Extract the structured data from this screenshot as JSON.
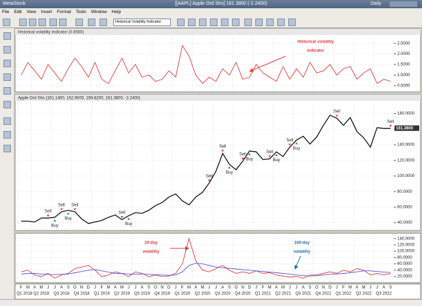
{
  "window": {
    "app": "MetaStock",
    "title": "[[AAPL] Apple Ord Shs]  161.3800 (-2.2400)",
    "period": "Daily"
  },
  "menu": [
    "File",
    "Edit",
    "View",
    "Insert",
    "Format",
    "Tools",
    "Window",
    "Help"
  ],
  "toolbar": {
    "indicator_select": "Historical Volatility Indicator"
  },
  "x_axis": {
    "months": [
      "F",
      "M",
      "A",
      "M",
      "J",
      "J",
      "A",
      "S",
      "O",
      "N",
      "D",
      "J",
      "F",
      "M",
      "A",
      "M",
      "J",
      "J",
      "A",
      "S",
      "O",
      "N",
      "D",
      "J",
      "F",
      "M",
      "A",
      "M",
      "J",
      "J",
      "A",
      "S",
      "O",
      "N",
      "D",
      "J",
      "F",
      "M",
      "A",
      "M",
      "J",
      "J",
      "A",
      "S",
      "O",
      "N",
      "D",
      "J",
      "F",
      "M",
      "A",
      "M",
      "J",
      "J",
      "A",
      "S"
    ],
    "quarters": [
      "Q1 2018",
      "Q2 2018",
      "Q3 2018",
      "Q4 2018",
      "Q1 2019",
      "Q2 2019",
      "Q3 2019",
      "Q4 2019",
      "Q1 2020",
      "Q2 2020",
      "Q3 2020",
      "Q4 2020",
      "Q1 2021",
      "Q2 2021",
      "Q3 2021",
      "Q4 2021",
      "Q1 2022",
      "Q2 2022",
      "Q3 2022"
    ]
  },
  "panels": [
    {
      "type": "line",
      "header": "Historical volatility Indicator (0.6580)",
      "ylim": [
        0.2,
        2.8
      ],
      "yticks": [
        {
          "value": 0.5,
          "label": "0.5000"
        },
        {
          "value": 1.0,
          "label": "1.0000"
        },
        {
          "value": 1.5,
          "label": "1.5000"
        },
        {
          "value": 2.0,
          "label": "2.0000"
        },
        {
          "value": 2.5,
          "label": "2.5000"
        }
      ],
      "series": [
        {
          "name": "Historical volatility indicator",
          "color": "#e03a3a",
          "values": [
            1.0,
            1.6,
            1.2,
            0.8,
            1.5,
            1.1,
            0.7,
            1.3,
            1.8,
            1.4,
            0.9,
            1.6,
            0.8,
            0.6,
            1.2,
            1.8,
            1.1,
            1.5,
            0.9,
            1.0,
            0.7,
            0.8,
            1.2,
            0.9,
            2.4,
            1.9,
            1.0,
            0.6,
            0.9,
            0.7,
            1.3,
            1.0,
            1.6,
            0.8,
            0.9,
            1.5,
            1.1,
            0.9,
            0.7,
            1.4,
            0.8,
            1.3,
            0.9,
            1.6,
            1.1,
            1.2,
            1.5,
            1.0,
            1.3,
            1.4,
            0.8,
            1.1,
            1.3,
            0.6,
            0.8,
            0.7
          ]
        }
      ],
      "annotations": [
        "Historical volatility",
        "indicator"
      ]
    },
    {
      "type": "line",
      "header": "Apple Ord Shs (161.1450, 162.9000, 159.8200, 161.3800, -2.2400)",
      "ylim": [
        30,
        192
      ],
      "yticks": [
        {
          "value": 40,
          "label": "40.0000"
        },
        {
          "value": 60,
          "label": "60.0000"
        },
        {
          "value": 80,
          "label": "80.0000"
        },
        {
          "value": 100,
          "label": "100.0000"
        },
        {
          "value": 120,
          "label": "120.0000"
        },
        {
          "value": 140,
          "label": "140.0000"
        },
        {
          "value": 160,
          "label": "160.0000"
        },
        {
          "value": 180,
          "label": "180.0000"
        }
      ],
      "last_price": {
        "value": 161.38,
        "label": "161.3800"
      },
      "series": [
        {
          "name": "Apple Ord Shs",
          "color": "#111111",
          "values": [
            42,
            42,
            41,
            46,
            46,
            47,
            54,
            56,
            54,
            45,
            39,
            41,
            43,
            47,
            50,
            44,
            49,
            53,
            52,
            56,
            62,
            66,
            73,
            77,
            68,
            63,
            73,
            79,
            91,
            106,
            129,
            115,
            108,
            119,
            132,
            131,
            121,
            122,
            131,
            125,
            137,
            146,
            151,
            141,
            150,
            165,
            178,
            174,
            165,
            175,
            157,
            149,
            137,
            162,
            161,
            161
          ]
        }
      ],
      "signals": [
        "Sell",
        "Buy",
        "Sell",
        "Buy",
        "Sell",
        "Sell",
        "Buy",
        "Sell",
        "Sell",
        "Buy",
        "Sell",
        "Buy",
        "Sell",
        "Buy",
        "Sell",
        "Buy",
        "Sell",
        "Sell"
      ]
    },
    {
      "type": "line",
      "header": "",
      "ylim": [
        5,
        148
      ],
      "yticks": [
        {
          "value": 20,
          "label": "20.0000"
        },
        {
          "value": 40,
          "label": "40.0000"
        },
        {
          "value": 60,
          "label": "60.0000"
        },
        {
          "value": 80,
          "label": "80.0000"
        },
        {
          "value": 100,
          "label": "100.0000"
        },
        {
          "value": 120,
          "label": "120.0000"
        },
        {
          "value": 140,
          "label": "140.0000"
        }
      ],
      "series": [
        {
          "name": "20-day volatility",
          "color": "#e03a3a",
          "values": [
            35,
            40,
            25,
            20,
            30,
            15,
            25,
            30,
            45,
            50,
            55,
            40,
            20,
            25,
            35,
            30,
            20,
            35,
            30,
            20,
            25,
            20,
            22,
            30,
            60,
            140,
            70,
            40,
            35,
            45,
            55,
            40,
            30,
            35,
            30,
            38,
            30,
            32,
            25,
            22,
            18,
            20,
            15,
            25,
            25,
            30,
            35,
            30,
            40,
            35,
            45,
            40,
            25,
            30,
            25,
            30
          ]
        },
        {
          "name": "100-day volatility",
          "color": "#5555dd",
          "values": [
            28,
            30,
            30,
            28,
            27,
            26,
            27,
            28,
            32,
            36,
            40,
            42,
            38,
            34,
            30,
            30,
            28,
            28,
            28,
            27,
            26,
            25,
            24,
            25,
            35,
            55,
            62,
            60,
            55,
            50,
            48,
            46,
            44,
            42,
            40,
            38,
            36,
            34,
            32,
            30,
            28,
            25,
            23,
            22,
            23,
            25,
            27,
            28,
            30,
            32,
            35,
            38,
            38,
            36,
            34,
            33
          ]
        }
      ],
      "annotations": [
        "20-day",
        "volatility",
        "100-day",
        "volatility"
      ]
    }
  ]
}
